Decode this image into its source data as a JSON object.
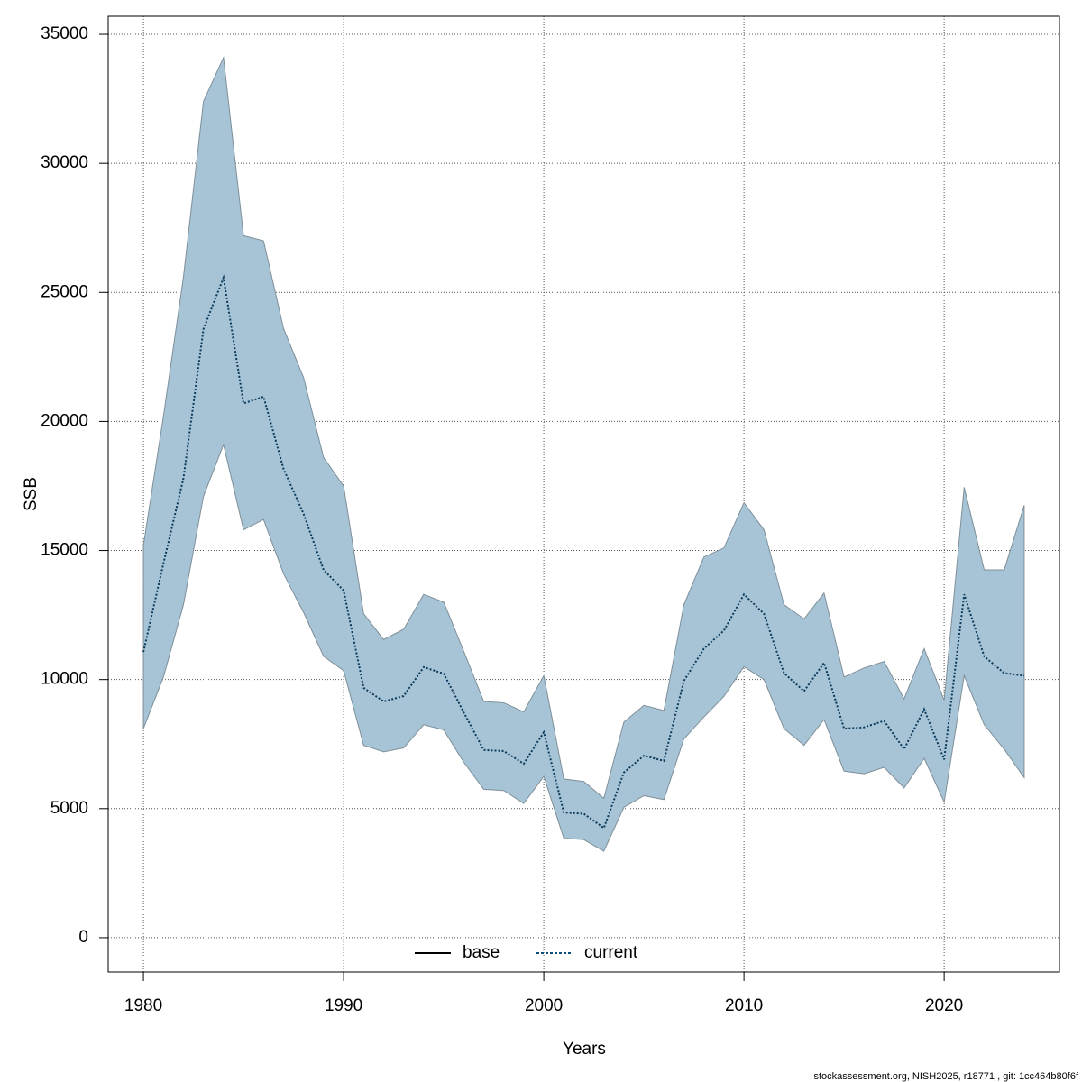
{
  "chart_data": {
    "type": "line",
    "x_label": "Years",
    "y_label": "SSB",
    "footer": "stockassessment.org, NISH2025, r18771 , git: 1cc464b80f6f",
    "x": [
      1980,
      1981,
      1982,
      1983,
      1984,
      1985,
      1986,
      1987,
      1988,
      1989,
      1990,
      1991,
      1992,
      1993,
      1994,
      1995,
      1996,
      1997,
      1998,
      1999,
      2000,
      2001,
      2002,
      2003,
      2004,
      2005,
      2006,
      2007,
      2008,
      2009,
      2010,
      2011,
      2012,
      2013,
      2014,
      2015,
      2016,
      2017,
      2018,
      2019,
      2020,
      2021,
      2022,
      2023,
      2024
    ],
    "series": [
      {
        "name": "current",
        "color": "#0b3a5c",
        "band_color": "#a6c4d5",
        "band_edge": "#7f8f99",
        "values": [
          11070,
          14500,
          17800,
          23580,
          25570,
          20700,
          20960,
          18160,
          16420,
          14250,
          13450,
          9680,
          9150,
          9360,
          10480,
          10230,
          8730,
          7270,
          7230,
          6740,
          7960,
          4850,
          4800,
          4250,
          6400,
          7050,
          6850,
          9950,
          11200,
          11900,
          13300,
          12550,
          10250,
          9550,
          10650,
          8100,
          8150,
          8400,
          7300,
          8850,
          6900,
          13300,
          10900,
          10250,
          10150
        ],
        "upper": [
          15200,
          20200,
          25600,
          32400,
          34100,
          27200,
          27000,
          23600,
          21700,
          18600,
          17500,
          12550,
          11550,
          11950,
          13300,
          13000,
          11100,
          9150,
          9100,
          8750,
          10150,
          6150,
          6050,
          5400,
          8350,
          9000,
          8800,
          12900,
          14750,
          15100,
          16850,
          15800,
          12900,
          12350,
          13350,
          10100,
          10450,
          10700,
          9250,
          11200,
          9200,
          17450,
          14250,
          14250,
          16750
        ],
        "lower": [
          8100,
          10100,
          12900,
          17100,
          19100,
          15800,
          16200,
          14100,
          12600,
          10900,
          10350,
          7450,
          7200,
          7350,
          8250,
          8050,
          6800,
          5750,
          5700,
          5200,
          6250,
          3850,
          3800,
          3350,
          5050,
          5500,
          5350,
          7700,
          8550,
          9350,
          10500,
          10000,
          8100,
          7450,
          8450,
          6450,
          6350,
          6600,
          5800,
          6950,
          5250,
          10150,
          8250,
          7300,
          6200
        ]
      }
    ],
    "legend": {
      "position": "bottom",
      "entries": [
        {
          "name": "base",
          "color": "#000000",
          "style": "solid"
        },
        {
          "name": "current",
          "color": "#0b4f7a",
          "style": "dotted"
        }
      ]
    },
    "xlim": [
      1978.24,
      2025.76
    ],
    "ylim": [
      -1330,
      35700
    ],
    "xticks": [
      1980,
      1990,
      2000,
      2010,
      2020
    ],
    "yticks": [
      0,
      5000,
      10000,
      15000,
      20000,
      25000,
      30000,
      35000
    ],
    "grid": true
  }
}
